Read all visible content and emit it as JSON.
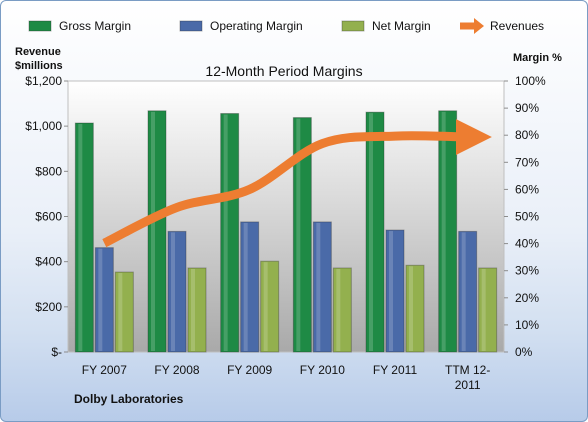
{
  "chart_data": {
    "type": "bar",
    "title": "12-Month Period Margins",
    "footnote": "Dolby Laboratories",
    "categories": [
      "FY 2007",
      "FY 2008",
      "FY 2009",
      "FY 2010",
      "FY 2011",
      "TTM 12-2011"
    ],
    "category_lines": [
      [
        "FY 2007"
      ],
      [
        "FY 2008"
      ],
      [
        "FY 2009"
      ],
      [
        "FY 2010"
      ],
      [
        "FY 2011"
      ],
      [
        "TTM 12-",
        "2011"
      ]
    ],
    "y_left": {
      "label_lines": [
        "Revenue",
        "$millions"
      ],
      "ylim": [
        0,
        1200
      ],
      "ticks": [
        "$-",
        "$200",
        "$400",
        "$600",
        "$800",
        "$1,000",
        "$1,200"
      ]
    },
    "y_right": {
      "label": "Margin %",
      "ylim": [
        0,
        100
      ],
      "ticks": [
        "0%",
        "10%",
        "20%",
        "30%",
        "40%",
        "50%",
        "60%",
        "70%",
        "80%",
        "90%",
        "100%"
      ]
    },
    "series": [
      {
        "name": "Gross Margin",
        "type": "bar",
        "axis": "right",
        "color": "#1e8a45",
        "values": [
          84.5,
          89,
          88,
          86.5,
          88.5,
          89
        ]
      },
      {
        "name": "Operating Margin",
        "type": "bar",
        "axis": "right",
        "color": "#4a6aa8",
        "values": [
          38.5,
          44.5,
          48,
          48,
          45,
          44.5
        ]
      },
      {
        "name": "Net Margin",
        "type": "bar",
        "axis": "right",
        "color": "#93b04e",
        "values": [
          29.5,
          31,
          33.5,
          31,
          32,
          31
        ]
      },
      {
        "name": "Revenues",
        "type": "line",
        "axis": "left",
        "color": "#ed7d31",
        "values": [
          482,
          640,
          720,
          923,
          956,
          952
        ]
      }
    ],
    "legend_position": "top",
    "grid": false
  }
}
